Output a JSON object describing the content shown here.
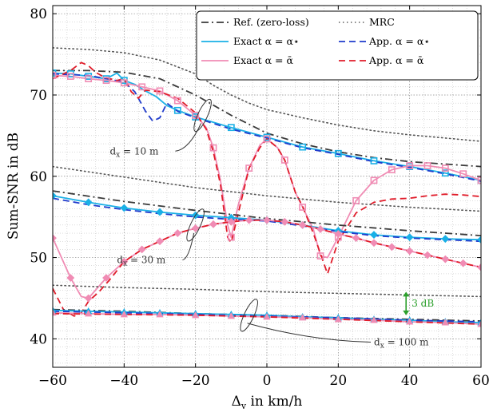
{
  "chart_data": {
    "type": "line",
    "xlabel": "Δ",
    "xlabel_sub": "v",
    "xlabel_rest": " in km/h",
    "ylabel": "Sum-SNR in dB",
    "xlim": [
      -60,
      60
    ],
    "ylim": [
      36.5,
      81
    ],
    "x_ticks": [
      -60,
      -40,
      -20,
      0,
      20,
      40,
      60
    ],
    "x_tick_labels": [
      "−60",
      "−40",
      "−20",
      "0",
      "20",
      "40",
      "60"
    ],
    "y_ticks": [
      40,
      50,
      60,
      70,
      80
    ],
    "y_tick_labels": [
      "40",
      "50",
      "60",
      "70",
      "80"
    ],
    "grid": true,
    "legend_position": "top-right",
    "legend": [
      {
        "label": "Ref. (zero-loss)",
        "style": "dashdot",
        "color": "#3a3a3a"
      },
      {
        "label": "MRC",
        "style": "dotted",
        "color": "#555555"
      },
      {
        "label": "Exact α = α⋆",
        "style": "solid",
        "color": "#1ab0e6"
      },
      {
        "label": "App. α = α⋆",
        "style": "dashed",
        "color": "#1f3bcc"
      },
      {
        "label": "Exact α = ᾱ",
        "style": "solid",
        "color": "#f08cb4"
      },
      {
        "label": "App. α = ᾱ",
        "style": "dashed",
        "color": "#e01c2a"
      }
    ],
    "series": [
      {
        "name": "Ref. (zero-loss)",
        "group": "dx10",
        "color": "#3a3a3a",
        "style": "dashdot",
        "x": [
          -60,
          -50,
          -40,
          -30,
          -20,
          -10,
          0,
          10,
          20,
          30,
          40,
          50,
          60
        ],
        "y": [
          73.0,
          73.0,
          72.8,
          72.0,
          70.0,
          67.5,
          65.3,
          64.0,
          63.0,
          62.3,
          61.8,
          61.5,
          61.2
        ]
      },
      {
        "name": "MRC",
        "group": "dx10",
        "color": "#555555",
        "style": "dotted",
        "x": [
          -60,
          -50,
          -40,
          -30,
          -20,
          -15,
          -10,
          -5,
          0,
          10,
          20,
          30,
          40,
          50,
          60
        ],
        "y": [
          75.8,
          75.6,
          75.2,
          74.3,
          72.6,
          71.2,
          70.0,
          69.0,
          68.2,
          67.2,
          66.3,
          65.6,
          65.1,
          64.7,
          64.3
        ]
      },
      {
        "name": "Exact α = α⋆",
        "group": "dx10",
        "color": "#1ab0e6",
        "style": "solid",
        "marker": "square",
        "x": [
          -60,
          -55,
          -50,
          -45,
          -42,
          -40,
          -37,
          -34,
          -31,
          -28,
          -25,
          -20,
          -10,
          0,
          10,
          20,
          30,
          40,
          50,
          60
        ],
        "y": [
          72.7,
          72.6,
          72.3,
          72.0,
          72.7,
          71.8,
          71.3,
          70.5,
          69.8,
          68.7,
          68.1,
          67.3,
          66.0,
          64.8,
          63.6,
          62.8,
          61.9,
          61.2,
          60.4,
          59.5
        ]
      },
      {
        "name": "App. α = α⋆",
        "group": "dx10",
        "color": "#1f3bcc",
        "style": "dashed",
        "x": [
          -60,
          -50,
          -45,
          -40,
          -37,
          -34,
          -32,
          -30,
          -28,
          -25,
          -20,
          -10,
          0,
          10,
          20,
          30,
          40,
          50,
          60
        ],
        "y": [
          72.6,
          72.4,
          72.0,
          71.6,
          70.4,
          68.0,
          66.8,
          67.2,
          69.0,
          68.0,
          67.2,
          65.8,
          64.7,
          63.5,
          62.7,
          61.8,
          61.1,
          60.3,
          59.4
        ]
      },
      {
        "name": "Exact α = ᾱ",
        "group": "dx10",
        "color": "#f08cb4",
        "style": "solid",
        "marker": "square",
        "x": [
          -60,
          -55,
          -50,
          -45,
          -40,
          -35,
          -30,
          -25,
          -20,
          -17,
          -15,
          -13,
          -11,
          -10,
          -8,
          -5,
          -2,
          0,
          3,
          5,
          8,
          10,
          13,
          15,
          17,
          20,
          25,
          30,
          35,
          40,
          45,
          50,
          55,
          60
        ],
        "y": [
          72.4,
          72.3,
          72.0,
          71.8,
          71.5,
          71.0,
          70.5,
          69.3,
          67.5,
          66.0,
          63.5,
          59.5,
          54.0,
          52.5,
          56.5,
          61.0,
          63.8,
          64.6,
          63.5,
          62.0,
          58.0,
          56.2,
          53.5,
          50.2,
          50.0,
          52.5,
          57.0,
          59.5,
          60.8,
          61.3,
          61.3,
          61.0,
          60.3,
          59.5
        ]
      },
      {
        "name": "App. α = ᾱ",
        "group": "dx10",
        "color": "#e01c2a",
        "style": "dashed",
        "x": [
          -60,
          -55,
          -52,
          -50,
          -48,
          -46,
          -44,
          -42,
          -40,
          -38,
          -36,
          -34,
          -30,
          -25,
          -20,
          -17,
          -15,
          -13,
          -11,
          -10,
          -8,
          -5,
          -2,
          0,
          3,
          5,
          8,
          10,
          13,
          15,
          17,
          20,
          25,
          30,
          35,
          40,
          45,
          50,
          55,
          60
        ],
        "y": [
          72.0,
          73.0,
          74.0,
          73.6,
          72.8,
          72.3,
          72.0,
          71.8,
          72.0,
          70.4,
          69.6,
          70.6,
          70.4,
          69.6,
          67.8,
          65.8,
          63.0,
          59.0,
          52.5,
          51.8,
          55.5,
          61.0,
          63.5,
          64.6,
          63.5,
          62.0,
          58.0,
          56.3,
          53.0,
          50.5,
          48.0,
          52.0,
          55.5,
          56.8,
          57.2,
          57.3,
          57.6,
          57.8,
          57.7,
          57.5
        ]
      },
      {
        "name": "Ref. (zero-loss)",
        "group": "dx30",
        "color": "#3a3a3a",
        "style": "dashdot",
        "x": [
          -60,
          -40,
          -20,
          0,
          20,
          40,
          60
        ],
        "y": [
          58.2,
          56.9,
          55.8,
          54.8,
          54.0,
          53.3,
          52.7
        ]
      },
      {
        "name": "MRC",
        "group": "dx30",
        "color": "#555555",
        "style": "dotted",
        "x": [
          -60,
          -40,
          -20,
          0,
          20,
          40,
          60
        ],
        "y": [
          61.2,
          59.9,
          58.6,
          57.6,
          56.8,
          56.2,
          55.7
        ]
      },
      {
        "name": "Exact α = α⋆",
        "group": "dx30",
        "color": "#1ab0e6",
        "style": "solid",
        "marker": "diamond",
        "x": [
          -60,
          -50,
          -40,
          -30,
          -20,
          -10,
          0,
          10,
          20,
          30,
          40,
          50,
          60
        ],
        "y": [
          57.6,
          56.8,
          56.1,
          55.6,
          55.2,
          54.9,
          54.6,
          54.0,
          53.3,
          52.8,
          52.5,
          52.3,
          52.2
        ]
      },
      {
        "name": "App. α = α⋆",
        "group": "dx30",
        "color": "#1f3bcc",
        "style": "dashed",
        "x": [
          -60,
          -50,
          -40,
          -30,
          -20,
          -10,
          0,
          10,
          20,
          30,
          40,
          50,
          60
        ],
        "y": [
          57.3,
          56.5,
          55.9,
          55.4,
          55.0,
          54.7,
          54.5,
          53.9,
          53.2,
          52.7,
          52.4,
          52.2,
          52.0
        ]
      },
      {
        "name": "Exact α = ᾱ",
        "group": "dx30",
        "color": "#f08cb4",
        "style": "solid",
        "marker": "diamond",
        "x": [
          -60,
          -55,
          -52,
          -50,
          -45,
          -40,
          -35,
          -30,
          -25,
          -20,
          -15,
          -10,
          -5,
          0,
          5,
          10,
          15,
          20,
          25,
          30,
          35,
          40,
          45,
          50,
          55,
          60
        ],
        "y": [
          52.4,
          47.5,
          45.2,
          45.0,
          47.5,
          49.5,
          51.0,
          52.0,
          53.0,
          53.6,
          54.1,
          54.4,
          54.6,
          54.6,
          54.4,
          54.0,
          53.5,
          52.9,
          52.4,
          51.8,
          51.3,
          50.8,
          50.3,
          49.8,
          49.3,
          48.8
        ]
      },
      {
        "name": "App. α = ᾱ",
        "group": "dx30",
        "color": "#e01c2a",
        "style": "dashed",
        "x": [
          -60,
          -57,
          -54,
          -52,
          -50,
          -47,
          -44,
          -40,
          -35,
          -30,
          -25,
          -20,
          -15,
          -10,
          -5,
          0,
          5,
          10,
          15,
          20,
          25,
          30,
          35,
          40,
          45,
          50,
          55,
          60
        ],
        "y": [
          46.2,
          43.6,
          42.8,
          43.2,
          44.6,
          45.8,
          47.3,
          49.5,
          51.0,
          52.0,
          53.0,
          53.6,
          54.1,
          54.4,
          54.6,
          54.6,
          54.4,
          54.0,
          53.5,
          52.9,
          52.4,
          51.8,
          51.3,
          50.8,
          50.3,
          49.8,
          49.3,
          48.8
        ]
      },
      {
        "name": "Ref. (zero-loss)",
        "group": "dx100",
        "color": "#3a3a3a",
        "style": "dashdot",
        "x": [
          -60,
          -40,
          -20,
          0,
          20,
          40,
          60
        ],
        "y": [
          43.6,
          43.4,
          43.1,
          42.9,
          42.6,
          42.4,
          42.2
        ]
      },
      {
        "name": "MRC",
        "group": "dx100",
        "color": "#555555",
        "style": "dotted",
        "x": [
          -60,
          -40,
          -20,
          0,
          20,
          40,
          60
        ],
        "y": [
          46.6,
          46.3,
          46.1,
          45.8,
          45.6,
          45.4,
          45.2
        ]
      },
      {
        "name": "Exact α = α⋆",
        "group": "dx100",
        "color": "#1ab0e6",
        "style": "solid",
        "marker": "triangle",
        "x": [
          -60,
          -50,
          -40,
          -30,
          -20,
          -10,
          0,
          10,
          20,
          30,
          40,
          50,
          60
        ],
        "y": [
          43.5,
          43.4,
          43.3,
          43.2,
          43.1,
          43.0,
          42.9,
          42.7,
          42.6,
          42.4,
          42.3,
          42.1,
          42.0
        ]
      },
      {
        "name": "App. α = α⋆",
        "group": "dx100",
        "color": "#1f3bcc",
        "style": "dashed",
        "x": [
          -60,
          -40,
          -20,
          0,
          20,
          40,
          60
        ],
        "y": [
          43.4,
          43.2,
          43.0,
          42.8,
          42.6,
          42.3,
          42.1
        ]
      },
      {
        "name": "Exact α = ᾱ",
        "group": "dx100",
        "color": "#f08cb4",
        "style": "solid",
        "marker": "triangle",
        "x": [
          -60,
          -50,
          -40,
          -30,
          -20,
          -10,
          0,
          10,
          20,
          30,
          40,
          50,
          60
        ],
        "y": [
          43.2,
          43.1,
          43.0,
          43.0,
          42.9,
          42.8,
          42.7,
          42.6,
          42.4,
          42.3,
          42.1,
          42.0,
          41.8
        ]
      },
      {
        "name": "App. α = ᾱ",
        "group": "dx100",
        "color": "#e01c2a",
        "style": "dashed",
        "x": [
          -60,
          -40,
          -20,
          0,
          20,
          40,
          60
        ],
        "y": [
          43.1,
          43.0,
          42.9,
          42.7,
          42.4,
          42.1,
          41.8
        ]
      }
    ],
    "annotations": [
      {
        "label": "10",
        "x": -18,
        "y": 67.5,
        "text_x": -44,
        "text_y": 62.7
      },
      {
        "label": "30",
        "x": -20,
        "y": 54.0,
        "text_x": -42,
        "text_y": 49.3
      },
      {
        "label": "100",
        "x": -5,
        "y": 42.9,
        "text_x": 30,
        "text_y": 39.2
      }
    ],
    "annotation_prefix": "d",
    "annotation_sub": "x",
    "annotation_suffix": " m",
    "gap_annotation": {
      "label": "3 dB",
      "x": 39,
      "y_top": 45.8,
      "y_bottom": 42.9,
      "color": "#2ca02c"
    }
  }
}
